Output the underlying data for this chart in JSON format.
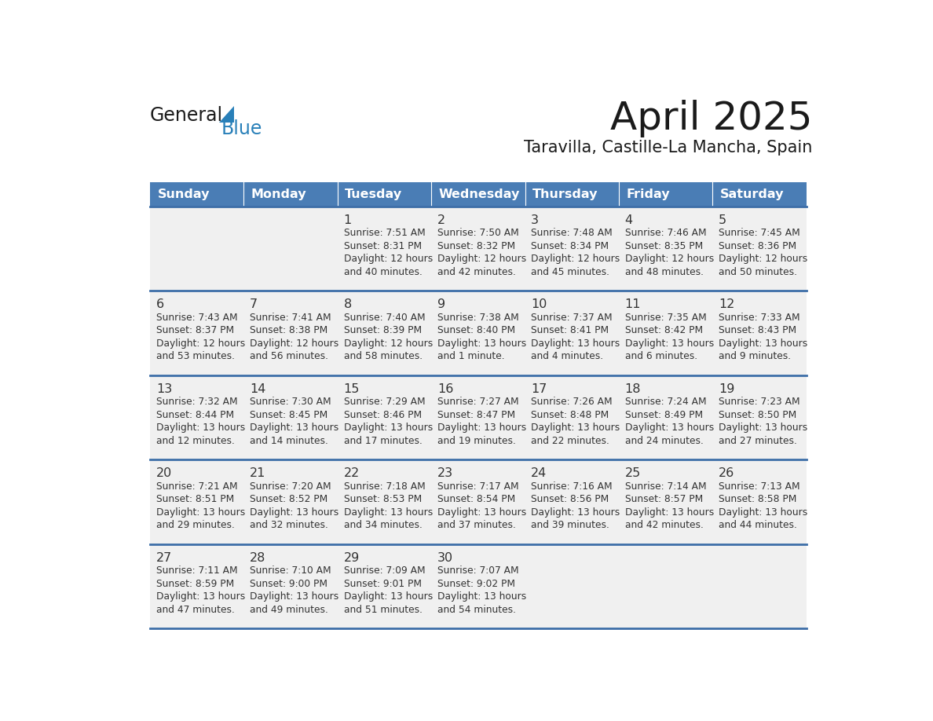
{
  "title": "April 2025",
  "subtitle": "Taravilla, Castille-La Mancha, Spain",
  "days_of_week": [
    "Sunday",
    "Monday",
    "Tuesday",
    "Wednesday",
    "Thursday",
    "Friday",
    "Saturday"
  ],
  "header_bg": "#4A7DB5",
  "header_text": "#FFFFFF",
  "cell_bg": "#F0F0F0",
  "separator_color": "#3D6EA8",
  "text_color": "#333333",
  "calendar": [
    [
      {
        "day": null,
        "sunrise": null,
        "sunset": null,
        "daylight": null
      },
      {
        "day": null,
        "sunrise": null,
        "sunset": null,
        "daylight": null
      },
      {
        "day": 1,
        "sunrise": "7:51 AM",
        "sunset": "8:31 PM",
        "daylight": "12 hours",
        "daylight2": "and 40 minutes."
      },
      {
        "day": 2,
        "sunrise": "7:50 AM",
        "sunset": "8:32 PM",
        "daylight": "12 hours",
        "daylight2": "and 42 minutes."
      },
      {
        "day": 3,
        "sunrise": "7:48 AM",
        "sunset": "8:34 PM",
        "daylight": "12 hours",
        "daylight2": "and 45 minutes."
      },
      {
        "day": 4,
        "sunrise": "7:46 AM",
        "sunset": "8:35 PM",
        "daylight": "12 hours",
        "daylight2": "and 48 minutes."
      },
      {
        "day": 5,
        "sunrise": "7:45 AM",
        "sunset": "8:36 PM",
        "daylight": "12 hours",
        "daylight2": "and 50 minutes."
      }
    ],
    [
      {
        "day": 6,
        "sunrise": "7:43 AM",
        "sunset": "8:37 PM",
        "daylight": "12 hours",
        "daylight2": "and 53 minutes."
      },
      {
        "day": 7,
        "sunrise": "7:41 AM",
        "sunset": "8:38 PM",
        "daylight": "12 hours",
        "daylight2": "and 56 minutes."
      },
      {
        "day": 8,
        "sunrise": "7:40 AM",
        "sunset": "8:39 PM",
        "daylight": "12 hours",
        "daylight2": "and 58 minutes."
      },
      {
        "day": 9,
        "sunrise": "7:38 AM",
        "sunset": "8:40 PM",
        "daylight": "13 hours",
        "daylight2": "and 1 minute."
      },
      {
        "day": 10,
        "sunrise": "7:37 AM",
        "sunset": "8:41 PM",
        "daylight": "13 hours",
        "daylight2": "and 4 minutes."
      },
      {
        "day": 11,
        "sunrise": "7:35 AM",
        "sunset": "8:42 PM",
        "daylight": "13 hours",
        "daylight2": "and 6 minutes."
      },
      {
        "day": 12,
        "sunrise": "7:33 AM",
        "sunset": "8:43 PM",
        "daylight": "13 hours",
        "daylight2": "and 9 minutes."
      }
    ],
    [
      {
        "day": 13,
        "sunrise": "7:32 AM",
        "sunset": "8:44 PM",
        "daylight": "13 hours",
        "daylight2": "and 12 minutes."
      },
      {
        "day": 14,
        "sunrise": "7:30 AM",
        "sunset": "8:45 PM",
        "daylight": "13 hours",
        "daylight2": "and 14 minutes."
      },
      {
        "day": 15,
        "sunrise": "7:29 AM",
        "sunset": "8:46 PM",
        "daylight": "13 hours",
        "daylight2": "and 17 minutes."
      },
      {
        "day": 16,
        "sunrise": "7:27 AM",
        "sunset": "8:47 PM",
        "daylight": "13 hours",
        "daylight2": "and 19 minutes."
      },
      {
        "day": 17,
        "sunrise": "7:26 AM",
        "sunset": "8:48 PM",
        "daylight": "13 hours",
        "daylight2": "and 22 minutes."
      },
      {
        "day": 18,
        "sunrise": "7:24 AM",
        "sunset": "8:49 PM",
        "daylight": "13 hours",
        "daylight2": "and 24 minutes."
      },
      {
        "day": 19,
        "sunrise": "7:23 AM",
        "sunset": "8:50 PM",
        "daylight": "13 hours",
        "daylight2": "and 27 minutes."
      }
    ],
    [
      {
        "day": 20,
        "sunrise": "7:21 AM",
        "sunset": "8:51 PM",
        "daylight": "13 hours",
        "daylight2": "and 29 minutes."
      },
      {
        "day": 21,
        "sunrise": "7:20 AM",
        "sunset": "8:52 PM",
        "daylight": "13 hours",
        "daylight2": "and 32 minutes."
      },
      {
        "day": 22,
        "sunrise": "7:18 AM",
        "sunset": "8:53 PM",
        "daylight": "13 hours",
        "daylight2": "and 34 minutes."
      },
      {
        "day": 23,
        "sunrise": "7:17 AM",
        "sunset": "8:54 PM",
        "daylight": "13 hours",
        "daylight2": "and 37 minutes."
      },
      {
        "day": 24,
        "sunrise": "7:16 AM",
        "sunset": "8:56 PM",
        "daylight": "13 hours",
        "daylight2": "and 39 minutes."
      },
      {
        "day": 25,
        "sunrise": "7:14 AM",
        "sunset": "8:57 PM",
        "daylight": "13 hours",
        "daylight2": "and 42 minutes."
      },
      {
        "day": 26,
        "sunrise": "7:13 AM",
        "sunset": "8:58 PM",
        "daylight": "13 hours",
        "daylight2": "and 44 minutes."
      }
    ],
    [
      {
        "day": 27,
        "sunrise": "7:11 AM",
        "sunset": "8:59 PM",
        "daylight": "13 hours",
        "daylight2": "and 47 minutes."
      },
      {
        "day": 28,
        "sunrise": "7:10 AM",
        "sunset": "9:00 PM",
        "daylight": "13 hours",
        "daylight2": "and 49 minutes."
      },
      {
        "day": 29,
        "sunrise": "7:09 AM",
        "sunset": "9:01 PM",
        "daylight": "13 hours",
        "daylight2": "and 51 minutes."
      },
      {
        "day": 30,
        "sunrise": "7:07 AM",
        "sunset": "9:02 PM",
        "daylight": "13 hours",
        "daylight2": "and 54 minutes."
      },
      {
        "day": null,
        "sunrise": null,
        "sunset": null,
        "daylight": null,
        "daylight2": null
      },
      {
        "day": null,
        "sunrise": null,
        "sunset": null,
        "daylight": null,
        "daylight2": null
      },
      {
        "day": null,
        "sunrise": null,
        "sunset": null,
        "daylight": null,
        "daylight2": null
      }
    ]
  ],
  "logo_general_color": "#1a1a1a",
  "logo_blue_color": "#2980B9",
  "logo_triangle_color": "#2980B9"
}
